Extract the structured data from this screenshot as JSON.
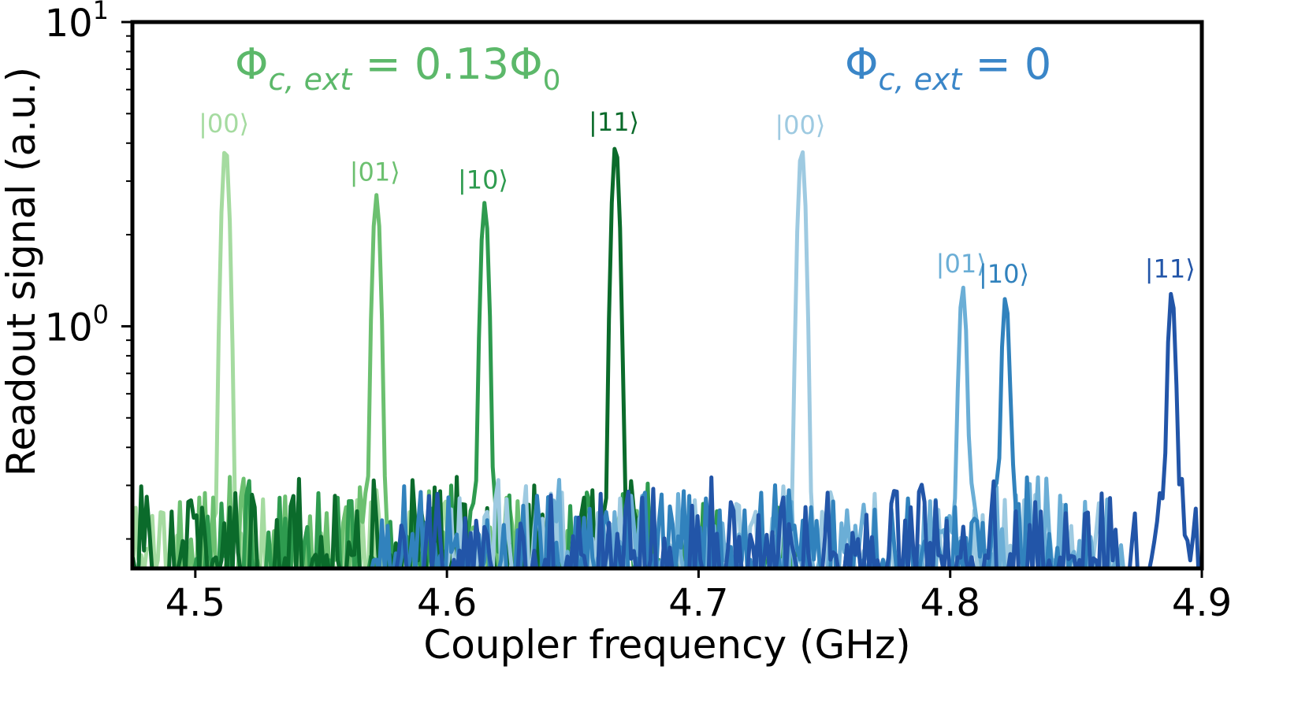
{
  "chart_data": {
    "type": "line",
    "title": "",
    "xlabel": "Coupler frequency (GHz)",
    "ylabel": "Readout signal (a.u.)",
    "xlim": [
      4.475,
      4.9
    ],
    "ylim": [
      0.16,
      10
    ],
    "yscale": "log",
    "grid": false,
    "x_ticks": [
      "4.5",
      "4.6",
      "4.7",
      "4.8",
      "4.9"
    ],
    "x_tick_values": [
      4.5,
      4.6,
      4.7,
      4.8,
      4.9
    ],
    "y_ticks": [
      {
        "value": 1,
        "base": "10",
        "exp": "0"
      },
      {
        "value": 10,
        "base": "10",
        "exp": "1"
      }
    ],
    "annotations": [
      {
        "id": "green",
        "base": "Φ",
        "sub": "c, ext",
        "rest": " = 0.13Φ",
        "sub2": "0",
        "color": "#5cb86a"
      },
      {
        "id": "blue",
        "base": "Φ",
        "sub": "c, ext",
        "rest": " = 0",
        "sub2": "",
        "color": "#3a86c8"
      }
    ],
    "series": [
      {
        "color": "#a5dba0",
        "group": "green",
        "state_label": "|00⟩",
        "peak_x": 4.512,
        "peak_y": 3.9,
        "noise_range": [
          4.475,
          4.6
        ],
        "seed": 11
      },
      {
        "color": "#6cc070",
        "group": "green",
        "state_label": "|01⟩",
        "peak_x": 4.572,
        "peak_y": 2.7,
        "noise_range": [
          4.49,
          4.685
        ],
        "seed": 23
      },
      {
        "color": "#2e9b4f",
        "group": "green",
        "state_label": "|10⟩",
        "peak_x": 4.615,
        "peak_y": 2.55,
        "noise_range": [
          4.5,
          4.74
        ],
        "seed": 37
      },
      {
        "color": "#0b6b2b",
        "group": "green",
        "state_label": "|11⟩",
        "peak_x": 4.667,
        "peak_y": 3.95,
        "noise_range": [
          4.475,
          4.68
        ],
        "seed": 41
      },
      {
        "color": "#9ecae1",
        "group": "blue",
        "state_label": "|00⟩",
        "peak_x": 4.741,
        "peak_y": 3.85,
        "noise_range": [
          4.6,
          4.86
        ],
        "seed": 53
      },
      {
        "color": "#6baed6",
        "group": "blue",
        "state_label": "|01⟩",
        "peak_x": 4.805,
        "peak_y": 1.35,
        "noise_range": [
          4.64,
          4.87
        ],
        "seed": 67
      },
      {
        "color": "#3182bd",
        "group": "blue",
        "state_label": "|10⟩",
        "peak_x": 4.822,
        "peak_y": 1.25,
        "noise_range": [
          4.57,
          4.86
        ],
        "seed": 71
      },
      {
        "color": "#2255a8",
        "group": "blue",
        "state_label": "|11⟩",
        "peak_x": 4.888,
        "peak_y": 1.3,
        "noise_range": [
          4.58,
          4.9
        ],
        "seed": 83
      }
    ]
  }
}
